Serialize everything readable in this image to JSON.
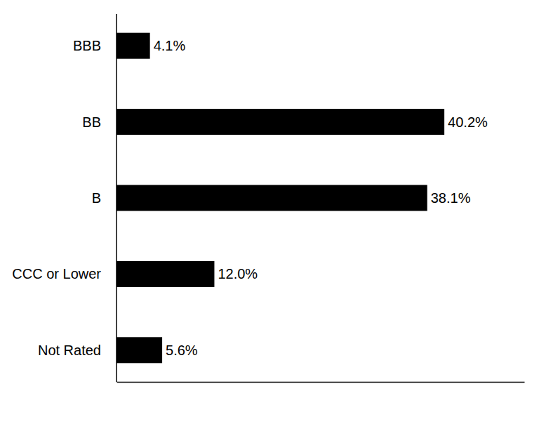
{
  "chart_data": {
    "type": "bar",
    "orientation": "horizontal",
    "categories": [
      "BBB",
      "BB",
      "B",
      "CCC or Lower",
      "Not Rated"
    ],
    "values": [
      4.1,
      40.2,
      38.1,
      12.0,
      5.6
    ],
    "value_labels": [
      "4.1%",
      "40.2%",
      "38.1%",
      "12.0%",
      "5.6%"
    ],
    "color": "#000000",
    "xlim": [
      0,
      50
    ],
    "data_labels": true,
    "tick_labels": "y",
    "grid": false
  }
}
